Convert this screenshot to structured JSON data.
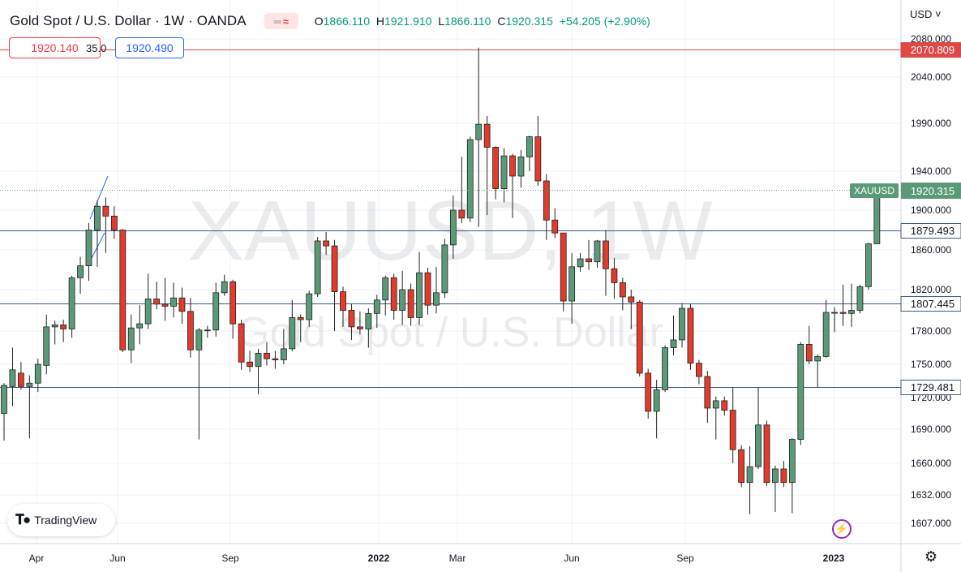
{
  "header": {
    "title": "Gold Spot / U.S. Dollar · 1W · OANDA",
    "ohlc": {
      "o_label": "O",
      "o": "1866.110",
      "h_label": "H",
      "h": "1921.910",
      "l_label": "L",
      "l": "1866.110",
      "c_label": "C",
      "c": "1920.315",
      "change": "+54.205 (+2.90%)"
    }
  },
  "trade": {
    "sell": "1920.140",
    "spread": "35.0",
    "buy": "1920.490"
  },
  "currency": "USD ˅",
  "watermark": {
    "symbol": "XAUUSD, 1W",
    "description": "Gold Spot / U.S. Dollar"
  },
  "brand": {
    "name": "TradingView",
    "icon": "tradingview-logo-icon"
  },
  "colors": {
    "up": "#5b9a78",
    "down": "#e03b2c",
    "hline": "#3c5a80",
    "red_line": "#e04848",
    "accent": "#2962ff"
  },
  "chart_data": {
    "type": "candlestick",
    "symbol": "XAUUSD",
    "timeframe": "1W",
    "y_ticks": [
      1607,
      1632,
      1660,
      1690,
      1720,
      1750,
      1780,
      1820,
      1860,
      1900,
      1940,
      1990,
      2040,
      2080
    ],
    "y_tick_labels": [
      "1607.000",
      "1632.000",
      "1660.000",
      "1690.000",
      "1720.000",
      "1750.000",
      "1780.000",
      "1820.000",
      "1860.000",
      "1900.000",
      "1940.000",
      "1990.000",
      "2040.000",
      "2080.000"
    ],
    "x_labels": [
      "Apr",
      "Jun",
      "Sep",
      "2022",
      "Mar",
      "Jun",
      "Sep",
      "2023"
    ],
    "horizontal_levels": [
      {
        "price": 1879.493,
        "label": "1879.493",
        "color": "#3c5a80"
      },
      {
        "price": 1807.445,
        "label": "1807.445",
        "color": "#3c5a80"
      },
      {
        "price": 1729.481,
        "label": "1729.481",
        "color": "#3c5a80"
      },
      {
        "price": 2070.809,
        "label": "2070.809",
        "color": "#e04848"
      }
    ],
    "last_price": {
      "price": 1920.315,
      "label": "1920.315",
      "symbol": "XAUUSD"
    },
    "candles": [
      [
        1705,
        1731,
        1680,
        1733
      ],
      [
        1730,
        1745,
        1712,
        1765
      ],
      [
        1742,
        1730,
        1727,
        1752
      ],
      [
        1730,
        1733,
        1682,
        1740
      ],
      [
        1733,
        1750,
        1725,
        1755
      ],
      [
        1749,
        1784,
        1741,
        1796
      ],
      [
        1784,
        1786,
        1768,
        1790
      ],
      [
        1786,
        1782,
        1770,
        1791
      ],
      [
        1782,
        1832,
        1774,
        1834
      ],
      [
        1832,
        1844,
        1816,
        1853
      ],
      [
        1844,
        1880,
        1829,
        1887
      ],
      [
        1880,
        1904,
        1843,
        1910
      ],
      [
        1904,
        1894,
        1857,
        1913
      ],
      [
        1894,
        1880,
        1871,
        1904
      ],
      [
        1880,
        1763,
        1761,
        1881
      ],
      [
        1763,
        1783,
        1751,
        1796
      ],
      [
        1783,
        1787,
        1768,
        1805
      ],
      [
        1787,
        1811,
        1782,
        1836
      ],
      [
        1811,
        1806,
        1801,
        1828
      ],
      [
        1806,
        1804,
        1790,
        1832
      ],
      [
        1804,
        1812,
        1793,
        1827
      ],
      [
        1812,
        1799,
        1787,
        1822
      ],
      [
        1799,
        1763,
        1756,
        1812
      ],
      [
        1763,
        1781,
        1681,
        1783
      ],
      [
        1781,
        1781,
        1774,
        1785
      ],
      [
        1781,
        1817,
        1775,
        1827
      ],
      [
        1817,
        1828,
        1814,
        1835
      ],
      [
        1828,
        1787,
        1773,
        1830
      ],
      [
        1787,
        1752,
        1745,
        1791
      ],
      [
        1752,
        1748,
        1743,
        1762
      ],
      [
        1748,
        1760,
        1723,
        1764
      ],
      [
        1760,
        1755,
        1749,
        1770
      ],
      [
        1755,
        1754,
        1746,
        1762
      ],
      [
        1754,
        1764,
        1750,
        1782
      ],
      [
        1764,
        1793,
        1762,
        1810
      ],
      [
        1793,
        1791,
        1770,
        1796
      ],
      [
        1791,
        1816,
        1784,
        1819
      ],
      [
        1816,
        1869,
        1813,
        1873
      ],
      [
        1869,
        1864,
        1855,
        1878
      ],
      [
        1864,
        1818,
        1780,
        1870
      ],
      [
        1818,
        1800,
        1784,
        1823
      ],
      [
        1800,
        1784,
        1772,
        1806
      ],
      [
        1784,
        1782,
        1777,
        1799
      ],
      [
        1782,
        1797,
        1765,
        1802
      ],
      [
        1797,
        1810,
        1783,
        1815
      ],
      [
        1810,
        1832,
        1795,
        1834
      ],
      [
        1832,
        1800,
        1791,
        1836
      ],
      [
        1800,
        1820,
        1786,
        1839
      ],
      [
        1820,
        1793,
        1785,
        1826
      ],
      [
        1793,
        1837,
        1786,
        1858
      ],
      [
        1837,
        1805,
        1796,
        1842
      ],
      [
        1805,
        1817,
        1797,
        1843
      ],
      [
        1817,
        1865,
        1812,
        1871
      ],
      [
        1865,
        1900,
        1851,
        1915
      ],
      [
        1900,
        1892,
        1887,
        1955
      ],
      [
        1892,
        1973,
        1888,
        1976
      ],
      [
        1973,
        1989,
        1883,
        2070.809
      ],
      [
        1989,
        1965,
        1895,
        1998
      ],
      [
        1965,
        1922,
        1911,
        1966
      ],
      [
        1922,
        1956,
        1908,
        1964
      ],
      [
        1956,
        1935,
        1892,
        1958
      ],
      [
        1935,
        1955,
        1923,
        1962
      ],
      [
        1955,
        1976,
        1940,
        1977
      ],
      [
        1976,
        1930,
        1925,
        1998
      ],
      [
        1930,
        1890,
        1870,
        1937
      ],
      [
        1890,
        1877,
        1872,
        1902
      ],
      [
        1877,
        1809,
        1799,
        1877
      ],
      [
        1809,
        1843,
        1787,
        1857
      ],
      [
        1843,
        1851,
        1838,
        1857
      ],
      [
        1851,
        1848,
        1840,
        1870
      ],
      [
        1848,
        1869,
        1842,
        1870
      ],
      [
        1869,
        1841,
        1814,
        1880
      ],
      [
        1841,
        1827,
        1811,
        1852
      ],
      [
        1827,
        1813,
        1800,
        1832
      ],
      [
        1813,
        1808,
        1782,
        1820
      ],
      [
        1808,
        1742,
        1739,
        1810
      ],
      [
        1742,
        1707,
        1700,
        1746
      ],
      [
        1707,
        1727,
        1682,
        1736
      ],
      [
        1727,
        1765,
        1725,
        1767
      ],
      [
        1765,
        1772,
        1758,
        1795
      ],
      [
        1772,
        1802,
        1765,
        1807
      ],
      [
        1802,
        1751,
        1745,
        1806
      ],
      [
        1751,
        1739,
        1732,
        1754
      ],
      [
        1739,
        1710,
        1696,
        1744
      ],
      [
        1710,
        1717,
        1681,
        1721
      ],
      [
        1717,
        1708,
        1703,
        1721
      ],
      [
        1708,
        1672,
        1660,
        1729
      ],
      [
        1672,
        1643,
        1639,
        1676
      ],
      [
        1643,
        1657,
        1615,
        1675
      ],
      [
        1657,
        1694,
        1655,
        1729
      ],
      [
        1694,
        1643,
        1640,
        1698
      ],
      [
        1643,
        1655,
        1617,
        1658
      ],
      [
        1655,
        1643,
        1639,
        1662
      ],
      [
        1643,
        1681,
        1616,
        1682
      ],
      [
        1681,
        1768,
        1676,
        1770
      ],
      [
        1768,
        1753,
        1750,
        1785
      ],
      [
        1753,
        1757,
        1729,
        1759
      ],
      [
        1757,
        1798,
        1756,
        1810
      ],
      [
        1798,
        1798,
        1779,
        1803
      ],
      [
        1798,
        1797,
        1785,
        1825
      ],
      [
        1797,
        1800,
        1784,
        1826
      ],
      [
        1800,
        1823,
        1797,
        1825
      ],
      [
        1823,
        1866.11,
        1820,
        1867
      ],
      [
        1866.11,
        1920.315,
        1866.11,
        1921.91
      ]
    ]
  }
}
